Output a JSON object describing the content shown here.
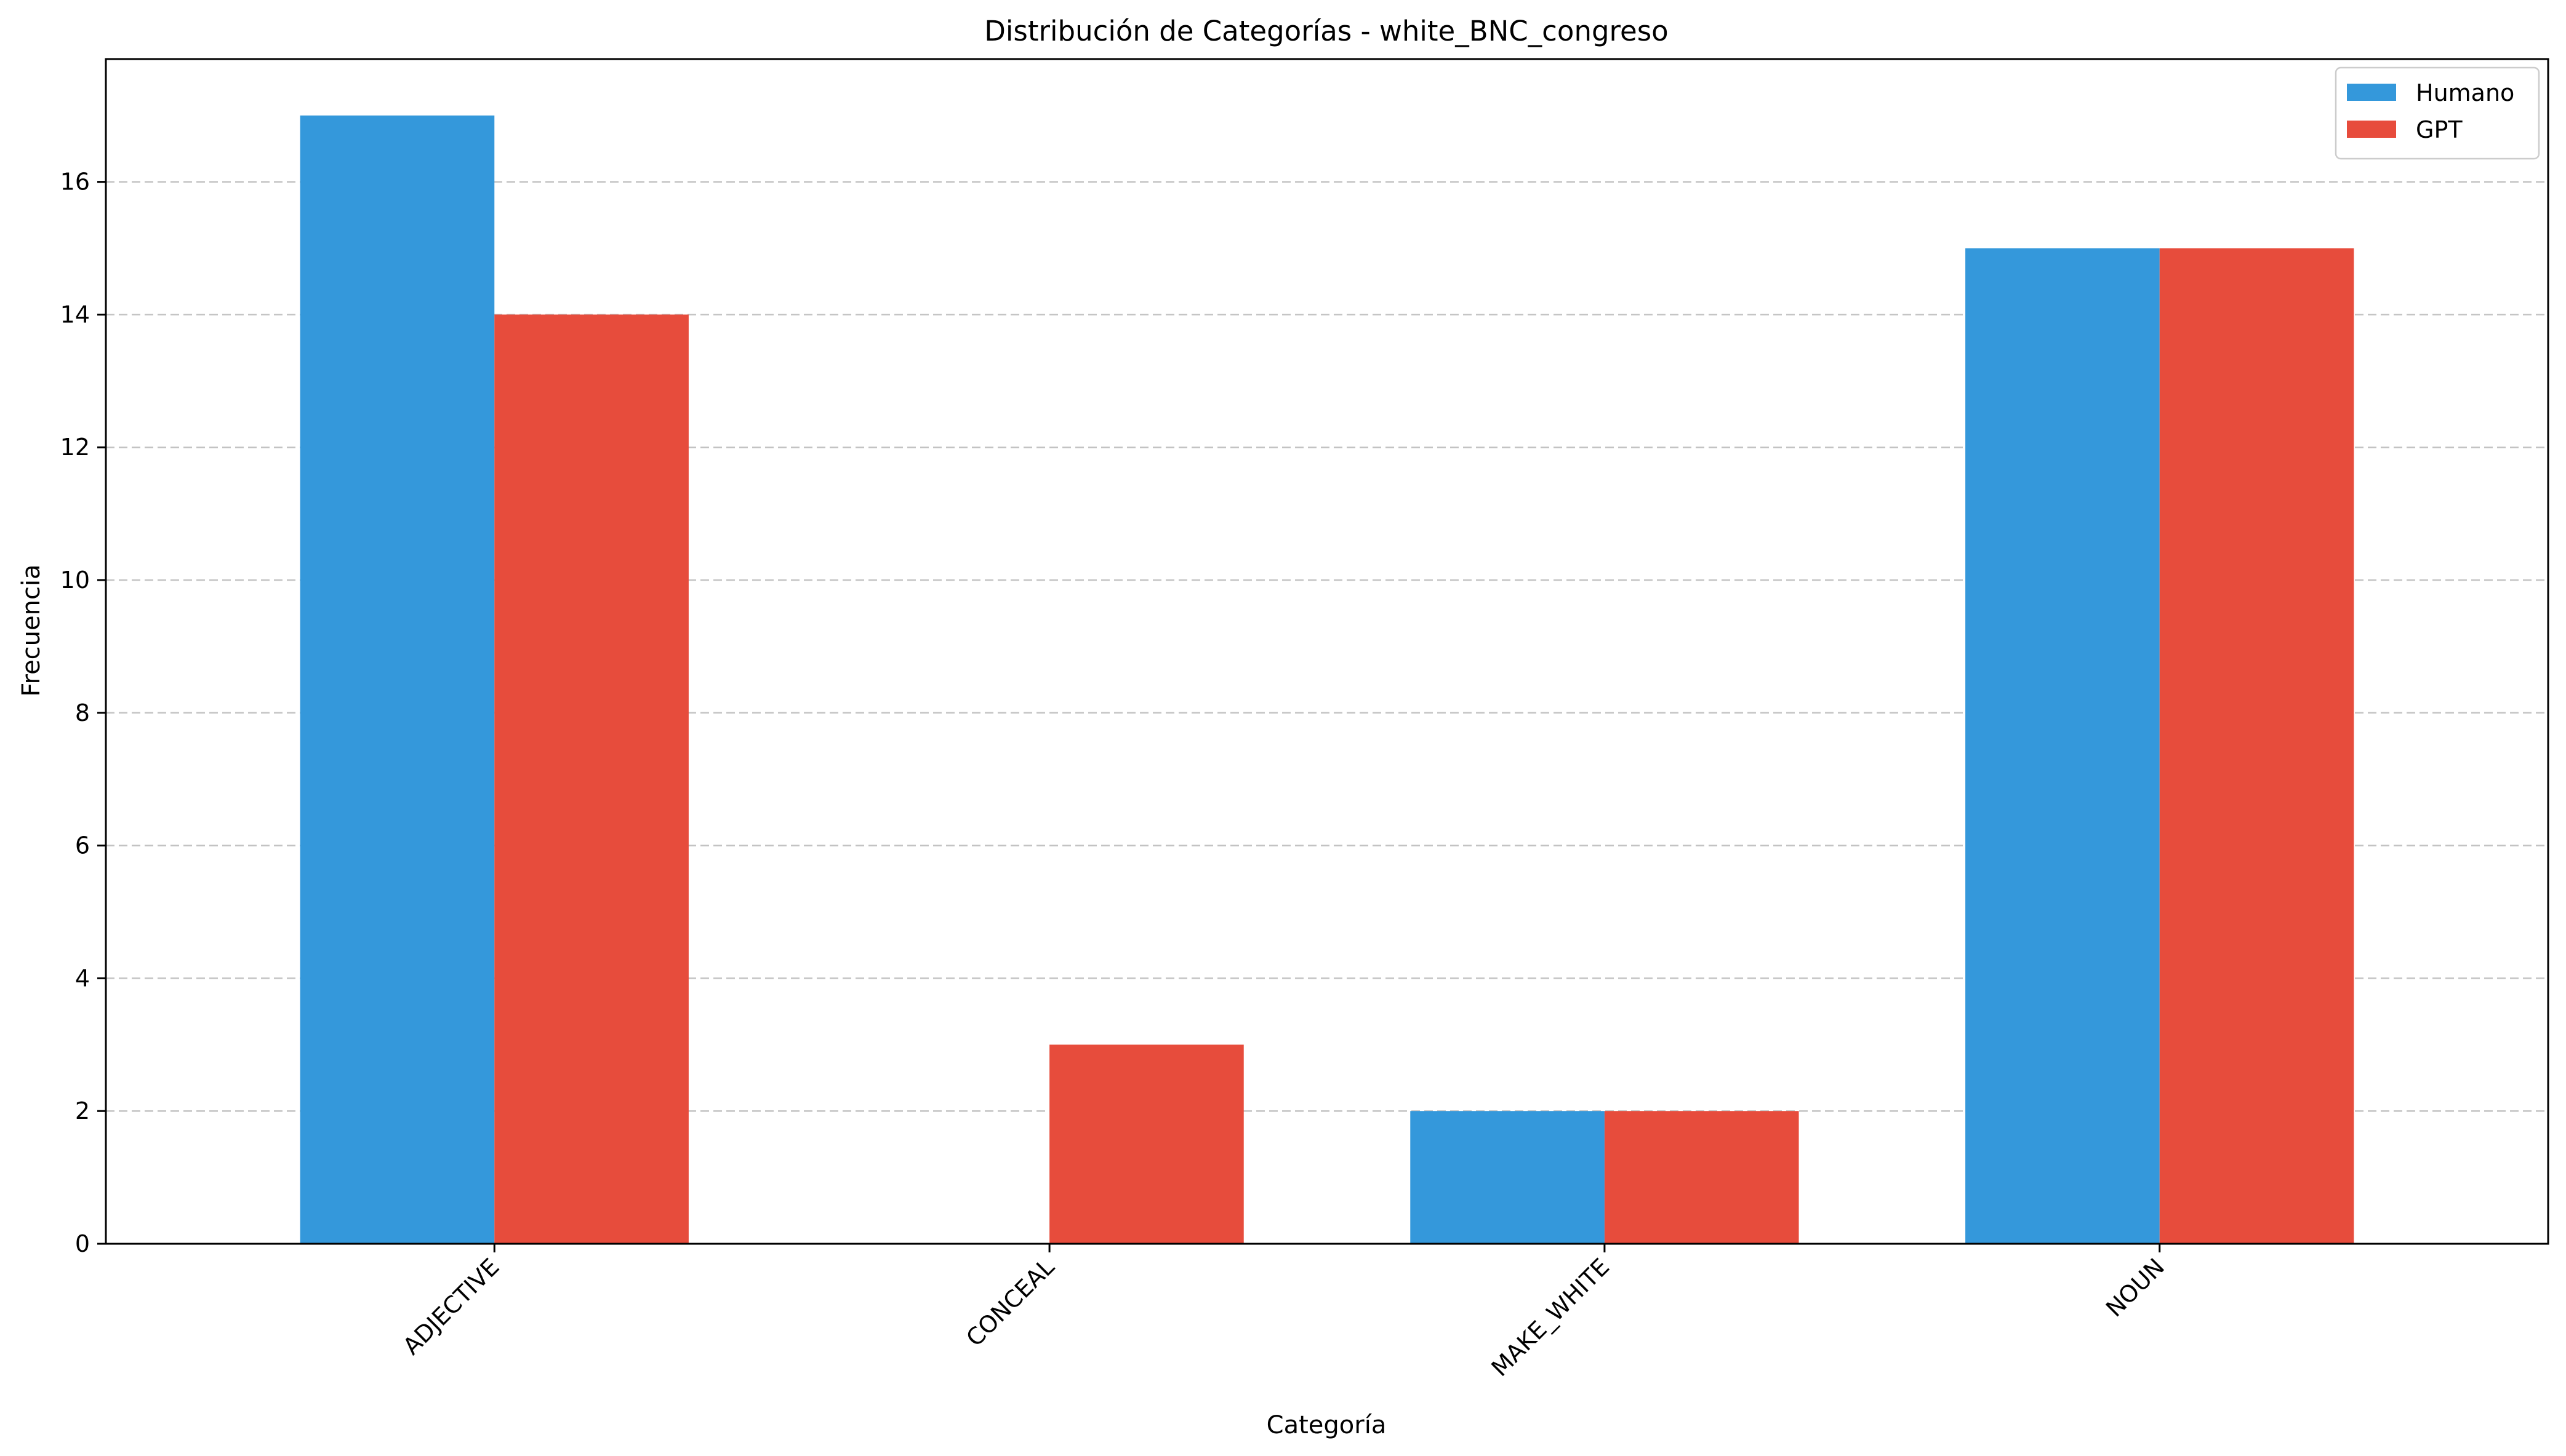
{
  "chart_data": {
    "type": "bar",
    "title": "Distribución de Categorías - white_BNC_congreso",
    "xlabel": "Categoría",
    "ylabel": "Frecuencia",
    "categories": [
      "ADJECTIVE",
      "CONCEAL",
      "MAKE_WHITE",
      "NOUN"
    ],
    "series": [
      {
        "name": "Humano",
        "color": "#3498db",
        "values": [
          17,
          0,
          2,
          15
        ]
      },
      {
        "name": "GPT",
        "color": "#e74c3c",
        "values": [
          14,
          3,
          2,
          15
        ]
      }
    ],
    "ylim": [
      0,
      17.85
    ],
    "yticks": [
      0,
      2,
      4,
      6,
      8,
      10,
      12,
      14,
      16
    ],
    "grid": {
      "y": true,
      "style": "dashed"
    },
    "legend": "top-right"
  }
}
